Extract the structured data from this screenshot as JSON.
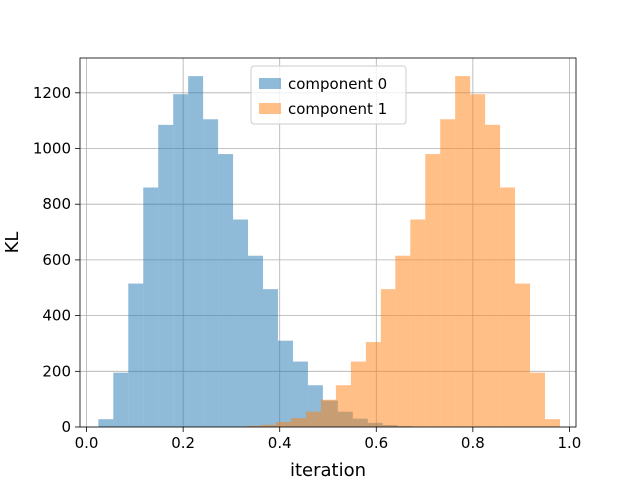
{
  "chart_data": {
    "type": "histogram",
    "xlabel": "iteration",
    "ylabel": "KL",
    "xlim": [
      -0.0136,
      1.0136
    ],
    "ylim": [
      0,
      1325
    ],
    "x_ticks": [
      0.0,
      0.2,
      0.4,
      0.6,
      0.8,
      1.0
    ],
    "x_tick_labels": [
      "0.0",
      "0.2",
      "0.4",
      "0.6",
      "0.8",
      "1.0"
    ],
    "y_ticks": [
      0,
      200,
      400,
      600,
      800,
      1000,
      1200
    ],
    "y_tick_labels": [
      "0",
      "200",
      "400",
      "600",
      "800",
      "1000",
      "1200"
    ],
    "grid": true,
    "legend_position": "top-center",
    "series": [
      {
        "name": "component 0",
        "color": "#1f77b4",
        "alpha": 0.5,
        "bin_edges": [
          0.0244,
          0.0554,
          0.0864,
          0.1174,
          0.1484,
          0.1794,
          0.2104,
          0.2414,
          0.2724,
          0.3034,
          0.3344,
          0.3654,
          0.3964,
          0.4274,
          0.4584,
          0.4894,
          0.5204,
          0.5514,
          0.5824,
          0.6134,
          0.6444,
          0.6754
        ],
        "counts": [
          28,
          195,
          515,
          860,
          1085,
          1195,
          1260,
          1105,
          980,
          745,
          615,
          495,
          310,
          235,
          150,
          95,
          55,
          30,
          15,
          7,
          3
        ]
      },
      {
        "name": "component 1",
        "color": "#ff7f0e",
        "alpha": 0.5,
        "bin_edges": [
          0.3304,
          0.3614,
          0.3924,
          0.4234,
          0.4544,
          0.4854,
          0.5164,
          0.5474,
          0.5784,
          0.6094,
          0.6394,
          0.6704,
          0.7014,
          0.7324,
          0.7634,
          0.7944,
          0.8254,
          0.8564,
          0.8874,
          0.9184,
          0.9494,
          0.9804
        ],
        "counts": [
          4,
          8,
          18,
          32,
          55,
          98,
          150,
          235,
          305,
          495,
          615,
          745,
          980,
          1105,
          1260,
          1195,
          1085,
          860,
          515,
          195,
          28
        ]
      }
    ]
  }
}
